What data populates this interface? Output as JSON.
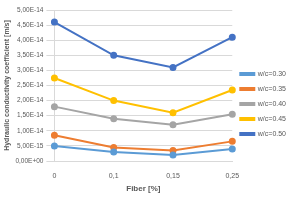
{
  "chart_data": {
    "type": "line",
    "x_label": "Fiber [%]",
    "y_label": "Hydraulic conductivity coefficient [m/s]",
    "categories": [
      "0",
      "0,1",
      "0,15",
      "0,25"
    ],
    "series": [
      {
        "name": "w/c=0.30",
        "color": "#5b9bd5",
        "values": [
          5e-15,
          3e-15,
          2e-15,
          4e-15
        ]
      },
      {
        "name": "w/c=0.35",
        "color": "#ed7d31",
        "values": [
          8.5e-15,
          4.5e-15,
          3.5e-15,
          6.5e-15
        ]
      },
      {
        "name": "w/c=0.40",
        "color": "#a5a5a5",
        "values": [
          1.8e-14,
          1.4e-14,
          1.2e-14,
          1.55e-14
        ]
      },
      {
        "name": "w/c=0.45",
        "color": "#ffc000",
        "values": [
          2.75e-14,
          2e-14,
          1.6e-14,
          2.35e-14
        ]
      },
      {
        "name": "w/c=0.50",
        "color": "#4472c4",
        "values": [
          4.6e-14,
          3.5e-14,
          3.1e-14,
          4.1e-14
        ]
      }
    ],
    "ylim": [
      0,
      5e-14
    ],
    "yticks": [
      {
        "value": 0,
        "label": "0,00E+00"
      },
      {
        "value": 5e-15,
        "label": "5,00E-15"
      },
      {
        "value": 1e-14,
        "label": "1,00E-14"
      },
      {
        "value": 1.5e-14,
        "label": "1,50E-14"
      },
      {
        "value": 2e-14,
        "label": "2,00E-14"
      },
      {
        "value": 2.5e-14,
        "label": "2,50E-14"
      },
      {
        "value": 3e-14,
        "label": "3,00E-14"
      },
      {
        "value": 3.5e-14,
        "label": "3,50E-14"
      },
      {
        "value": 4e-14,
        "label": "4,00E-14"
      },
      {
        "value": 4.5e-14,
        "label": "4,50E-14"
      },
      {
        "value": 5e-14,
        "label": "5,00E-14"
      }
    ],
    "grid": true,
    "legend": "right",
    "marker": "circle",
    "line_style": "solid"
  }
}
